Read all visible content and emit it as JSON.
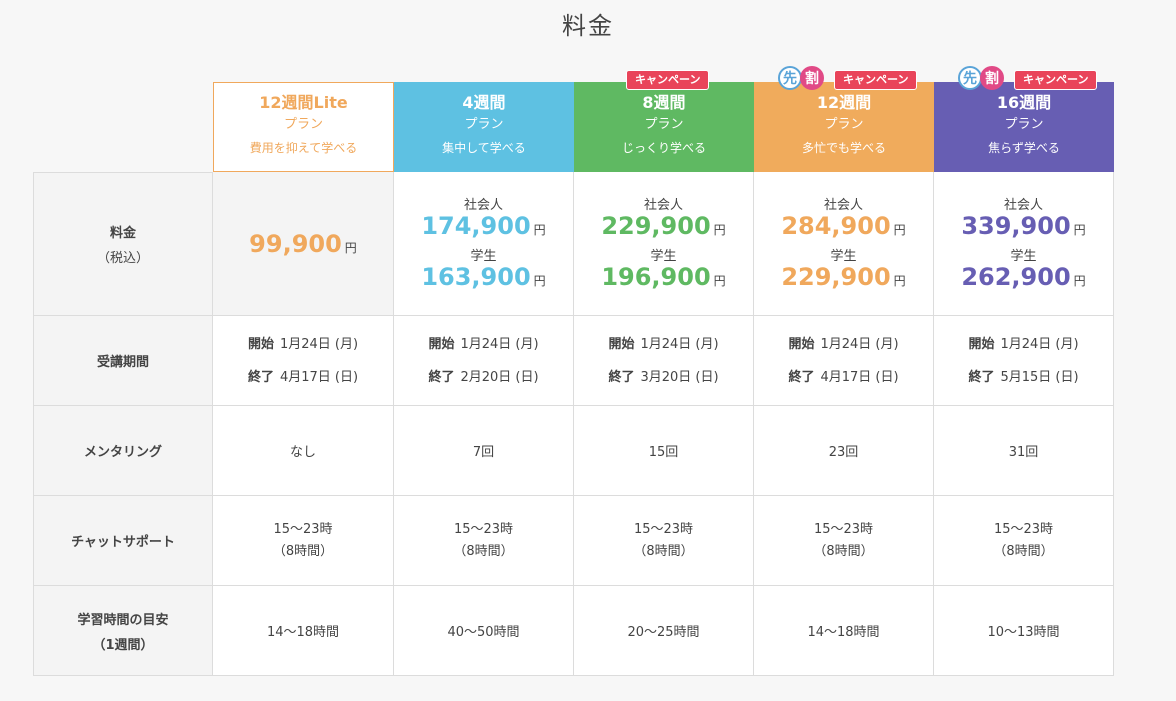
{
  "title": "料金",
  "plans": [
    {
      "name": "12週間Lite",
      "label": "プラン",
      "desc": "費用を抑えて学べる",
      "campaign": "",
      "sakiwari": []
    },
    {
      "name": "4週間",
      "label": "プラン",
      "desc": "集中して学べる",
      "campaign": "",
      "sakiwari": []
    },
    {
      "name": "8週間",
      "label": "プラン",
      "desc": "じっくり学べる",
      "campaign": "キャンペーン",
      "sakiwari": []
    },
    {
      "name": "12週間",
      "label": "プラン",
      "desc": "多忙でも学べる",
      "campaign": "キャンペーン",
      "sakiwari": [
        "先",
        "割"
      ]
    },
    {
      "name": "16週間",
      "label": "プラン",
      "desc": "焦らず学べる",
      "campaign": "キャンペーン",
      "sakiwari": [
        "先",
        "割"
      ]
    }
  ],
  "rows": {
    "price": {
      "label": "料金",
      "sub": "（税込）"
    },
    "period": {
      "label": "受講期間"
    },
    "mentoring": {
      "label": "メンタリング"
    },
    "chat": {
      "label": "チャットサポート"
    },
    "study": {
      "label": "学習時間の目安",
      "sub": "（1週間）"
    }
  },
  "prices": {
    "lite": {
      "amount": "99,900",
      "yen": "円"
    },
    "w4": {
      "work_label": "社会人",
      "work": "174,900",
      "student_label": "学生",
      "student": "163,900",
      "yen": "円"
    },
    "w8": {
      "work_label": "社会人",
      "work": "229,900",
      "student_label": "学生",
      "student": "196,900",
      "yen": "円"
    },
    "w12": {
      "work_label": "社会人",
      "work": "284,900",
      "student_label": "学生",
      "student": "229,900",
      "yen": "円"
    },
    "w16": {
      "work_label": "社会人",
      "work": "339,900",
      "student_label": "学生",
      "student": "262,900",
      "yen": "円"
    }
  },
  "period": {
    "start_label": "開始",
    "end_label": "終了",
    "values": [
      {
        "start": "1月24日 (月)",
        "end": "4月17日 (日)"
      },
      {
        "start": "1月24日 (月)",
        "end": "2月20日 (日)"
      },
      {
        "start": "1月24日 (月)",
        "end": "3月20日 (日)"
      },
      {
        "start": "1月24日 (月)",
        "end": "4月17日 (日)"
      },
      {
        "start": "1月24日 (月)",
        "end": "5月15日 (日)"
      }
    ]
  },
  "mentoring": [
    "なし",
    "7回",
    "15回",
    "23回",
    "31回"
  ],
  "chat": {
    "hours": "15～23時",
    "total": "（8時間）"
  },
  "study": [
    "14～18時間",
    "40～50時間",
    "20～25時間",
    "14～18時間",
    "10～13時間"
  ],
  "colors": {
    "lite": "#f0a85c",
    "w4": "#5ec1e2",
    "w8": "#5fb962",
    "w12": "#f0ab5c",
    "w16": "#675eb3",
    "campaign": "#e9445a"
  }
}
